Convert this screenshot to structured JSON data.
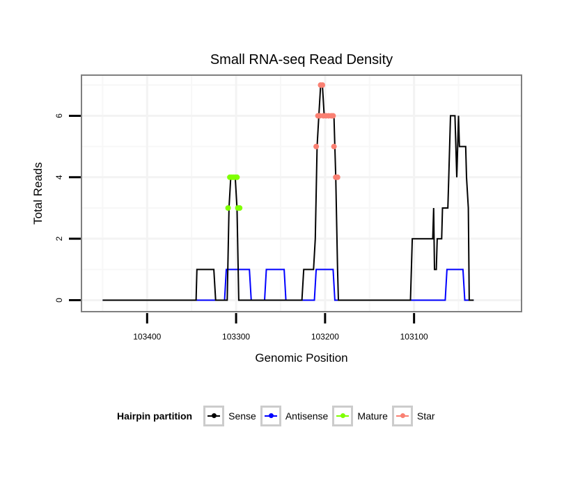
{
  "chart_data": {
    "type": "line",
    "title": "Small RNA-seq Read Density",
    "xlabel": "Genomic Position",
    "ylabel": "Total Reads",
    "x_reversed": true,
    "xlim": [
      103473,
      102980
    ],
    "ylim": [
      -0.35,
      7.3
    ],
    "xticks": [
      103400,
      103300,
      103200,
      103100
    ],
    "xtick_labels": [
      "103400",
      "103300",
      "103200",
      "103100"
    ],
    "yticks": [
      0,
      2,
      4,
      6
    ],
    "ytick_labels": [
      "0",
      "2",
      "4",
      "6"
    ],
    "grid": true,
    "legend": {
      "title": "Hairpin partition",
      "placement": "bottom",
      "entries": [
        {
          "name": "Sense",
          "color": "#000000"
        },
        {
          "name": "Antisense",
          "color": "#0000ff"
        },
        {
          "name": "Mature",
          "color": "#7fff00"
        },
        {
          "name": "Star",
          "color": "#fa8072"
        }
      ]
    },
    "series": [
      {
        "name": "Sense",
        "color": "#000000",
        "style": "line",
        "points": [
          [
            103450,
            0
          ],
          [
            103345,
            0
          ],
          [
            103344,
            1
          ],
          [
            103325,
            1
          ],
          [
            103323,
            0
          ],
          [
            103310,
            0
          ],
          [
            103308,
            3
          ],
          [
            103306,
            4
          ],
          [
            103301,
            4
          ],
          [
            103299,
            3
          ],
          [
            103297,
            0
          ],
          [
            103226,
            0
          ],
          [
            103224,
            1
          ],
          [
            103213,
            1
          ],
          [
            103211,
            2
          ],
          [
            103209,
            5
          ],
          [
            103207,
            6
          ],
          [
            103205,
            7
          ],
          [
            103203,
            7
          ],
          [
            103201,
            6
          ],
          [
            103190,
            6
          ],
          [
            103189,
            5
          ],
          [
            103188,
            4
          ],
          [
            103186,
            1
          ],
          [
            103185,
            0
          ],
          [
            103104,
            0
          ],
          [
            103102,
            2
          ],
          [
            103079,
            2
          ],
          [
            103078,
            3
          ],
          [
            103077,
            1
          ],
          [
            103075,
            1
          ],
          [
            103074,
            2
          ],
          [
            103069,
            2
          ],
          [
            103068,
            3
          ],
          [
            103062,
            3
          ],
          [
            103061,
            4
          ],
          [
            103059,
            6
          ],
          [
            103054,
            6
          ],
          [
            103052,
            4
          ],
          [
            103051,
            5
          ],
          [
            103050,
            6
          ],
          [
            103049,
            5
          ],
          [
            103042,
            5
          ],
          [
            103041,
            4
          ],
          [
            103039,
            3
          ],
          [
            103038,
            0
          ],
          [
            103033,
            0
          ]
        ]
      },
      {
        "name": "Antisense",
        "color": "#0000ff",
        "style": "line",
        "points": [
          [
            103450,
            0
          ],
          [
            103313,
            0
          ],
          [
            103311,
            1
          ],
          [
            103285,
            1
          ],
          [
            103283,
            0
          ],
          [
            103268,
            0
          ],
          [
            103266,
            1
          ],
          [
            103246,
            1
          ],
          [
            103244,
            0
          ],
          [
            103212,
            0
          ],
          [
            103210,
            1
          ],
          [
            103191,
            1
          ],
          [
            103189,
            0
          ],
          [
            103065,
            0
          ],
          [
            103063,
            1
          ],
          [
            103045,
            1
          ],
          [
            103043,
            0
          ],
          [
            103033,
            0
          ]
        ]
      },
      {
        "name": "Mature",
        "color": "#7fff00",
        "style": "points",
        "points": [
          [
            103309,
            3
          ],
          [
            103307,
            4
          ],
          [
            103305,
            4
          ],
          [
            103303,
            4
          ],
          [
            103301,
            4
          ],
          [
            103299,
            4
          ],
          [
            103298,
            3
          ],
          [
            103296,
            3
          ]
        ]
      },
      {
        "name": "Star",
        "color": "#fa8072",
        "style": "points",
        "points": [
          [
            103210,
            5
          ],
          [
            103208,
            6
          ],
          [
            103205,
            7
          ],
          [
            103203,
            7
          ],
          [
            103206,
            6
          ],
          [
            103202,
            6
          ],
          [
            103199,
            6
          ],
          [
            103196,
            6
          ],
          [
            103193,
            6
          ],
          [
            103191,
            6
          ],
          [
            103190,
            5
          ],
          [
            103188,
            4
          ],
          [
            103186,
            4
          ]
        ]
      }
    ]
  }
}
